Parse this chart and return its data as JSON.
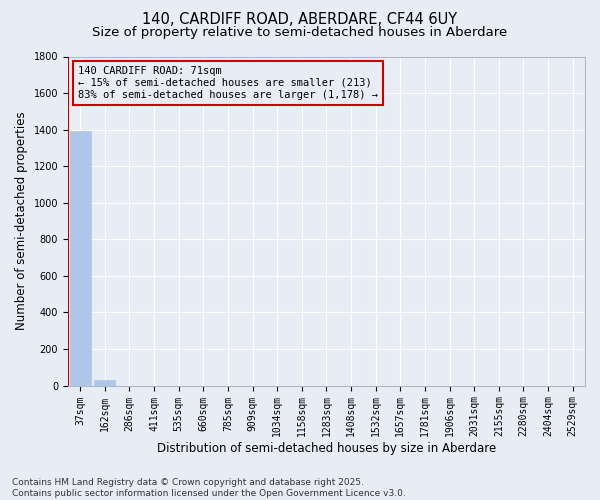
{
  "title_line1": "140, CARDIFF ROAD, ABERDARE, CF44 6UY",
  "title_line2": "Size of property relative to semi-detached houses in Aberdare",
  "xlabel": "Distribution of semi-detached houses by size in Aberdare",
  "ylabel": "Number of semi-detached properties",
  "categories": [
    "37sqm",
    "162sqm",
    "286sqm",
    "411sqm",
    "535sqm",
    "660sqm",
    "785sqm",
    "909sqm",
    "1034sqm",
    "1158sqm",
    "1283sqm",
    "1408sqm",
    "1532sqm",
    "1657sqm",
    "1781sqm",
    "1906sqm",
    "2031sqm",
    "2155sqm",
    "2280sqm",
    "2404sqm",
    "2529sqm"
  ],
  "values": [
    1391,
    28,
    0,
    0,
    0,
    0,
    0,
    0,
    0,
    0,
    0,
    0,
    0,
    0,
    0,
    0,
    0,
    0,
    0,
    0,
    0
  ],
  "bar_color": "#aec6e8",
  "marker_line_color": "#cc0000",
  "annotation_text": "140 CARDIFF ROAD: 71sqm\n← 15% of semi-detached houses are smaller (213)\n83% of semi-detached houses are larger (1,178) →",
  "ylim": [
    0,
    1800
  ],
  "yticks": [
    0,
    200,
    400,
    600,
    800,
    1000,
    1200,
    1400,
    1600,
    1800
  ],
  "footnote": "Contains HM Land Registry data © Crown copyright and database right 2025.\nContains public sector information licensed under the Open Government Licence v3.0.",
  "bg_color": "#e8edf5",
  "grid_color": "#ffffff",
  "title_fontsize": 10.5,
  "subtitle_fontsize": 9.5,
  "axis_label_fontsize": 8.5,
  "tick_fontsize": 7,
  "footnote_fontsize": 6.5,
  "annotation_fontsize": 7.5
}
